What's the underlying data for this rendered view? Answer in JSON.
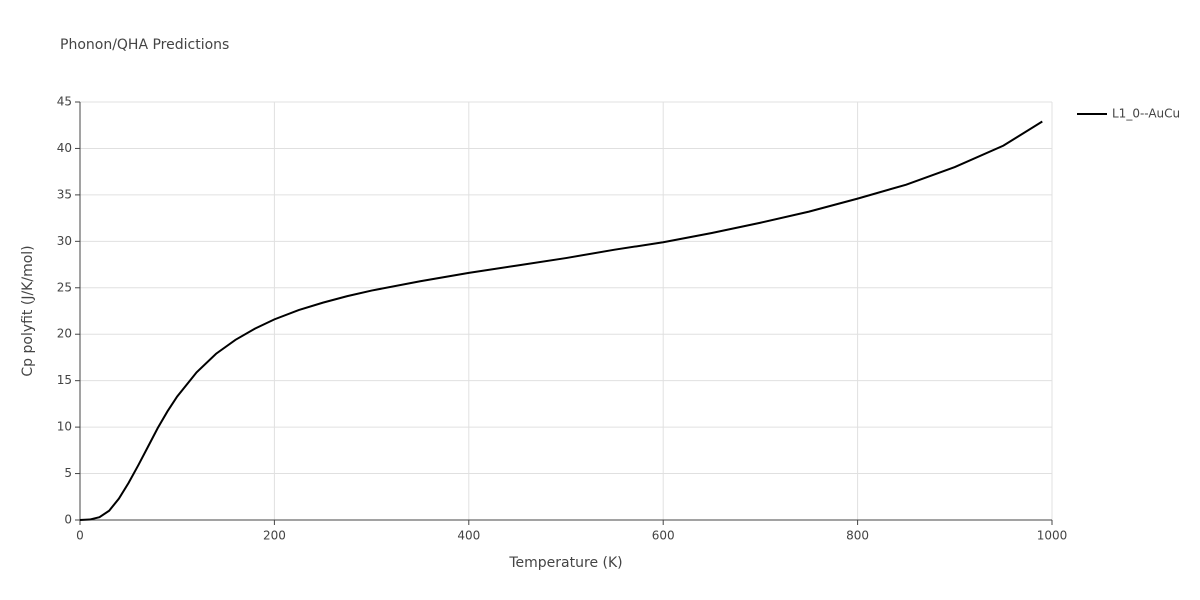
{
  "chart_data": {
    "type": "line",
    "title": "Phonon/QHA Predictions",
    "x_label": "Temperature (K)",
    "y_label": "Cp polyfit (J/K/mol)",
    "x": [
      0,
      10,
      20,
      30,
      40,
      50,
      60,
      70,
      80,
      90,
      100,
      120,
      140,
      160,
      180,
      200,
      225,
      250,
      275,
      300,
      350,
      400,
      450,
      500,
      550,
      600,
      650,
      700,
      750,
      800,
      850,
      900,
      950,
      990
    ],
    "series": [
      {
        "name": "L1_0--AuCu",
        "color": "#000000",
        "values": [
          0,
          0.05,
          0.3,
          1.0,
          2.3,
          4.0,
          5.9,
          7.9,
          9.9,
          11.7,
          13.3,
          15.9,
          17.9,
          19.4,
          20.6,
          21.6,
          22.6,
          23.4,
          24.1,
          24.7,
          25.7,
          26.6,
          27.4,
          28.2,
          29.1,
          29.9,
          30.9,
          32.0,
          33.2,
          34.6,
          36.1,
          38.0,
          40.3,
          42.9
        ]
      }
    ],
    "xlim": [
      0,
      1000
    ],
    "xticks": [
      0,
      200,
      400,
      600,
      800,
      1000
    ],
    "ylim": [
      0,
      45
    ],
    "yticks": [
      0,
      5,
      10,
      15,
      20,
      25,
      30,
      35,
      40,
      45
    ],
    "grid": true,
    "legend": "top-right"
  }
}
